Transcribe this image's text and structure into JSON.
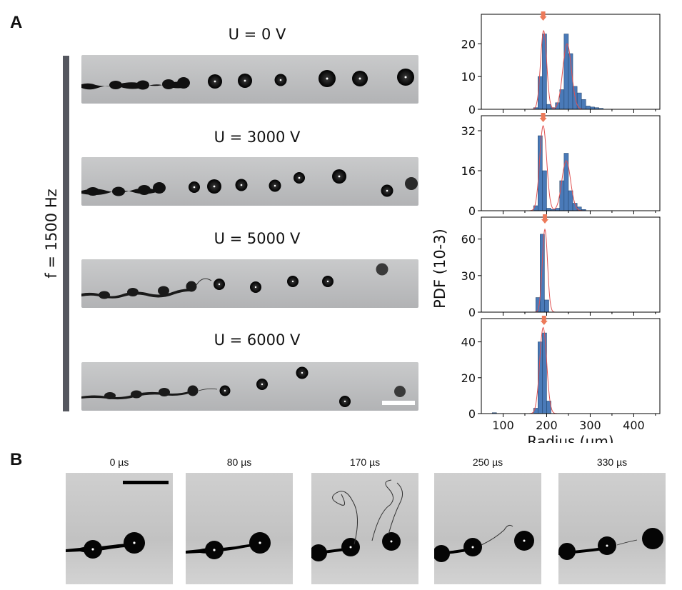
{
  "panel_a": {
    "letter": "A",
    "frequency_label": "f = 1500 Hz",
    "scale_bar_present": true,
    "strips": [
      {
        "voltage_label": "U = 0 V"
      },
      {
        "voltage_label": "U = 3000 V"
      },
      {
        "voltage_label": "U = 5000 V"
      },
      {
        "voltage_label": "U = 6000 V"
      }
    ]
  },
  "panel_b": {
    "letter": "B",
    "frames": [
      {
        "time_label": "0 µs"
      },
      {
        "time_label": "80 µs"
      },
      {
        "time_label": "170 µs"
      },
      {
        "time_label": "250 µs"
      },
      {
        "time_label": "330 µs"
      }
    ]
  },
  "colors": {
    "bar_fill": "#4a7ab8",
    "bar_edge": "#1f3f66",
    "fit_line": "#e05050",
    "marker": "#ec7a5a",
    "side_bar": "#55575f"
  },
  "chart_data": [
    {
      "type": "bar",
      "title": "U = 0 V",
      "xlabel": "Radius (µm)",
      "ylabel": "PDF (10-3)",
      "xlim": [
        50,
        460
      ],
      "ylim": [
        0,
        29
      ],
      "yticks": [
        0,
        10,
        20
      ],
      "xticks": [
        100,
        200,
        300,
        400
      ],
      "bin_width": 10,
      "bin_centers": [
        175,
        185,
        195,
        205,
        215,
        225,
        235,
        245,
        255,
        265,
        275,
        285,
        295,
        305,
        315,
        325
      ],
      "values": [
        0.5,
        10,
        23,
        1.5,
        0.5,
        2,
        6,
        23,
        17,
        7,
        5,
        3,
        1,
        0.7,
        0.5,
        0.3
      ],
      "fit_peaks": [
        {
          "mu": 193,
          "sigma": 7,
          "amp": 24
        },
        {
          "mu": 247,
          "sigma": 10,
          "amp": 20
        }
      ],
      "marker_x": 192
    },
    {
      "type": "bar",
      "title": "U = 3000 V",
      "xlabel": "Radius (µm)",
      "ylabel": "PDF (10-3)",
      "xlim": [
        50,
        460
      ],
      "ylim": [
        0,
        38
      ],
      "yticks": [
        0,
        16,
        32
      ],
      "xticks": [
        100,
        200,
        300,
        400
      ],
      "bin_width": 10,
      "bin_centers": [
        175,
        185,
        195,
        205,
        215,
        225,
        235,
        245,
        255,
        265,
        275,
        285
      ],
      "values": [
        2,
        30,
        16,
        1,
        0.5,
        1,
        12,
        23,
        8,
        3,
        1.5,
        0.5
      ],
      "fit_peaks": [
        {
          "mu": 192,
          "sigma": 8,
          "amp": 34
        },
        {
          "mu": 245,
          "sigma": 10,
          "amp": 20
        }
      ],
      "marker_x": 192
    },
    {
      "type": "bar",
      "title": "U = 5000 V",
      "xlabel": "Radius (µm)",
      "ylabel": "PDF (10-3)",
      "xlim": [
        50,
        460
      ],
      "ylim": [
        0,
        78
      ],
      "yticks": [
        0,
        30,
        60
      ],
      "xticks": [
        100,
        200,
        300,
        400
      ],
      "bin_width": 10,
      "bin_centers": [
        180,
        190,
        200
      ],
      "values": [
        12,
        64,
        10
      ],
      "fit_peaks": [
        {
          "mu": 196,
          "sigma": 6,
          "amp": 68
        }
      ],
      "marker_x": 196
    },
    {
      "type": "bar",
      "title": "U = 6000 V",
      "xlabel": "Radius (µm)",
      "ylabel": "PDF (10-3)",
      "xlim": [
        50,
        460
      ],
      "ylim": [
        0,
        53
      ],
      "yticks": [
        0,
        20,
        40
      ],
      "xticks": [
        100,
        200,
        300,
        400
      ],
      "xticklabels": [
        "100",
        "200",
        "300",
        "400"
      ],
      "bin_width": 10,
      "bin_centers": [
        80,
        175,
        185,
        195,
        205
      ],
      "values": [
        0.5,
        3,
        40,
        45,
        7
      ],
      "fit_peaks": [
        {
          "mu": 192,
          "sigma": 8,
          "amp": 48
        }
      ],
      "marker_x": 194
    }
  ]
}
